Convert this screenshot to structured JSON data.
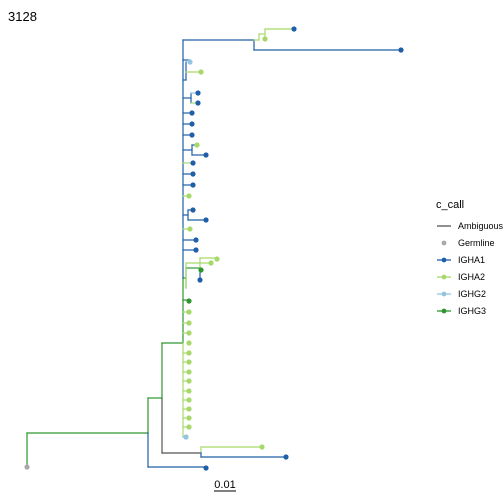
{
  "title": "3128",
  "colors": {
    "Ambiguous": "#555555",
    "Germline": "#a9a9a9",
    "IGHA1": "#1f5fa8",
    "IGHA2": "#a6d96a",
    "IGHG2": "#92c5de",
    "IGHG3": "#2e9630"
  },
  "legend": {
    "title": "c_call",
    "items": [
      {
        "label": "Ambiguous",
        "key": "Ambiguous",
        "marker": "line"
      },
      {
        "label": "Germline",
        "key": "Germline",
        "marker": "point"
      },
      {
        "label": "IGHA1",
        "key": "IGHA1",
        "marker": "both"
      },
      {
        "label": "IGHA2",
        "key": "IGHA2",
        "marker": "both"
      },
      {
        "label": "IGHG2",
        "key": "IGHG2",
        "marker": "both"
      },
      {
        "label": "IGHG3",
        "key": "IGHG3",
        "marker": "both"
      }
    ]
  },
  "scale_bar": {
    "label": "0.01",
    "length": 0.01
  },
  "tree": {
    "tips": [
      {
        "call": "Germline"
      },
      {
        "call": "IGHA1"
      },
      {
        "call": "IGHA1"
      },
      {
        "call": "IGHA2"
      },
      {
        "call": "IGHG2"
      },
      {
        "call": "IGHA2"
      },
      {
        "call": "IGHA2"
      },
      {
        "call": "IGHA2"
      },
      {
        "call": "IGHA2"
      },
      {
        "call": "IGHA2"
      },
      {
        "call": "IGHA2"
      },
      {
        "call": "IGHA2"
      },
      {
        "call": "IGHA2"
      },
      {
        "call": "IGHA2"
      },
      {
        "call": "IGHA2"
      },
      {
        "call": "IGHA2"
      },
      {
        "call": "IGHA2"
      },
      {
        "call": "IGHA2"
      },
      {
        "call": "IGHG3"
      },
      {
        "call": "IGHA2"
      },
      {
        "call": "IGHA1"
      },
      {
        "call": "IGHG3"
      },
      {
        "call": "IGHA2"
      },
      {
        "call": "IGHA1"
      },
      {
        "call": "IGHA1"
      },
      {
        "call": "IGHA2"
      },
      {
        "call": "IGHA1"
      },
      {
        "call": "IGHA1"
      },
      {
        "call": "IGHA2"
      },
      {
        "call": "IGHA1"
      },
      {
        "call": "IGHA1"
      },
      {
        "call": "IGHA1"
      },
      {
        "call": "IGHA1"
      },
      {
        "call": "IGHA2"
      },
      {
        "call": "IGHA1"
      },
      {
        "call": "IGHA1"
      },
      {
        "call": "IGHA1"
      },
      {
        "call": "IGHA1"
      },
      {
        "call": "IGHA1"
      },
      {
        "call": "IGHA2"
      },
      {
        "call": "IGHG2"
      },
      {
        "call": "IGHA1"
      },
      {
        "call": "IGHA2"
      },
      {
        "call": "IGHA1"
      },
      {
        "call": "IGHA1"
      },
      {
        "call": "IGHA2"
      },
      {
        "call": "IGHA2"
      }
    ]
  }
}
